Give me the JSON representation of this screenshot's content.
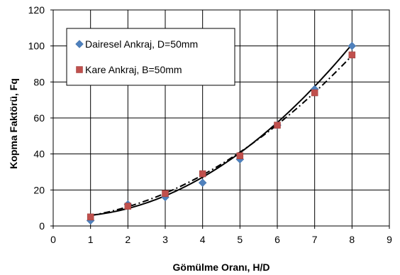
{
  "chart_data": {
    "type": "scatter",
    "xlabel": "Gömülme Oranı, H/D",
    "ylabel": "Kopma Faktörü, Fq",
    "xlim": [
      0,
      9
    ],
    "ylim": [
      0,
      120
    ],
    "x_ticks": [
      "0",
      "1",
      "2",
      "3",
      "4",
      "5",
      "6",
      "7",
      "8",
      "9"
    ],
    "y_ticks": [
      "0",
      "20",
      "40",
      "60",
      "80",
      "100",
      "120"
    ],
    "grid": true,
    "legend_position": "top-left",
    "series": [
      {
        "name": "Dairesel Ankraj, D=50mm",
        "marker": "diamond",
        "color": "#4f81bd",
        "x": [
          1,
          2,
          3,
          4,
          5,
          6,
          7,
          8
        ],
        "y": [
          3,
          12,
          16,
          24,
          37,
          56,
          76,
          100
        ],
        "trendline": {
          "style": "solid",
          "color": "#000000",
          "coeffs": [
            5.4,
            -1.1,
            1.63
          ]
        }
      },
      {
        "name": "Kare Ankraj, B=50mm",
        "marker": "square",
        "color": "#c0504d",
        "x": [
          1,
          2,
          3,
          4,
          5,
          6,
          7,
          8
        ],
        "y": [
          5,
          11,
          18,
          29,
          39,
          56,
          74,
          95
        ],
        "trendline": {
          "style": "dash-dot",
          "color": "#000000",
          "coeffs": [
            3.5,
            1.0,
            1.3
          ]
        }
      }
    ]
  }
}
